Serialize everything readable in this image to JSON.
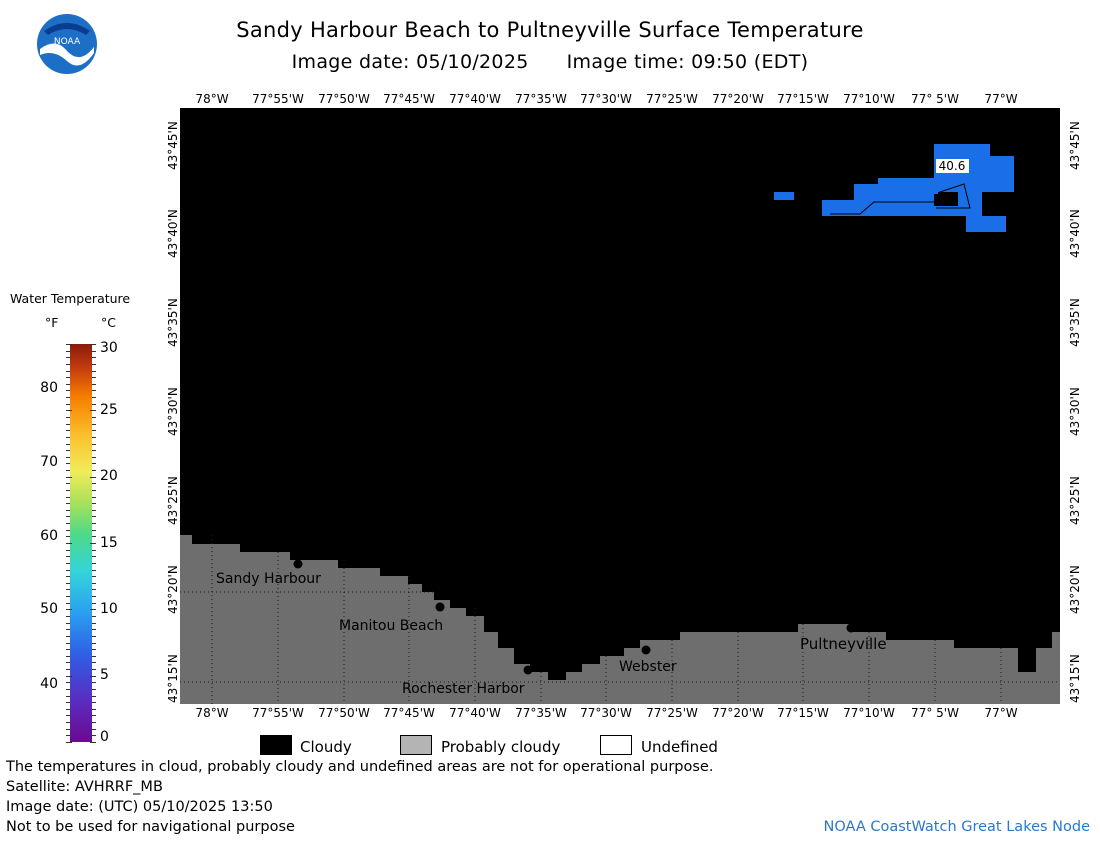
{
  "header": {
    "title": "Sandy Harbour Beach to Pultneyville Surface Temperature",
    "subtitle_date": "Image date: 05/10/2025",
    "subtitle_time": "Image time: 09:50 (EDT)",
    "logo_text": "NOAA"
  },
  "axes": {
    "longitudes": [
      "78°W",
      "77°55'W",
      "77°50'W",
      "77°45'W",
      "77°40'W",
      "77°35'W",
      "77°30'W",
      "77°25'W",
      "77°20'W",
      "77°15'W",
      "77°10'W",
      "77° 5'W",
      "77°W"
    ],
    "latitudes": [
      "43°45'N",
      "43°40'N",
      "43°35'N",
      "43°30'N",
      "43°25'N",
      "43°20'N",
      "43°15'N"
    ]
  },
  "legend": {
    "title": "Water Temperature",
    "unit_f": "°F",
    "unit_c": "°C",
    "fahrenheit_ticks": [
      "80",
      "70",
      "60",
      "50",
      "40"
    ],
    "celsius_ticks": [
      "30",
      "25",
      "20",
      "15",
      "10",
      "5",
      "0"
    ],
    "categories": [
      {
        "label": "Cloudy",
        "color": "#000000"
      },
      {
        "label": "Probably cloudy",
        "color": "#b4b4b4"
      },
      {
        "label": "Undefined",
        "color": "#ffffff"
      }
    ]
  },
  "map": {
    "colors": {
      "cloud": "#000000",
      "land": "#6e6e6e",
      "water_sst": "#1a6fe8"
    },
    "temperature_label": "40.6",
    "places": [
      {
        "name": "Sandy Harbour"
      },
      {
        "name": "Manitou Beach"
      },
      {
        "name": "Rochester Harbor"
      },
      {
        "name": "Webster"
      },
      {
        "name": "Pultneyville"
      }
    ]
  },
  "footer": {
    "note": "The temperatures in cloud, probably cloudy and undefined areas are not for operational purpose.",
    "satellite": "Satellite: AVHRRF_MB",
    "utc_date": "Image date: (UTC) 05/10/2025  13:50",
    "nav_warning": "Not to be used for navigational purpose",
    "credit": "NOAA CoastWatch Great Lakes Node"
  }
}
